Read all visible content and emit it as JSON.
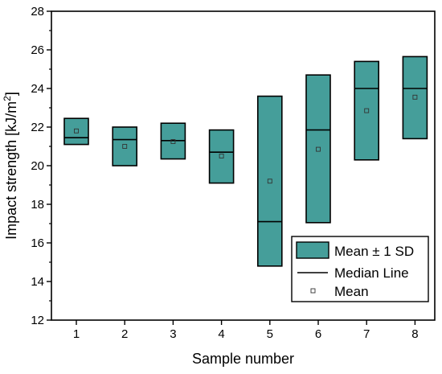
{
  "chart_data": {
    "type": "box",
    "title": "",
    "xlabel": "Sample number",
    "ylabel_main": "Impact strength [kJ/m",
    "ylabel_sup": "2",
    "ylabel_end": "]",
    "categories": [
      "1",
      "2",
      "3",
      "4",
      "5",
      "6",
      "7",
      "8"
    ],
    "boxes": [
      {
        "sample": "1",
        "mean": 21.8,
        "median": 21.45,
        "lower": 21.1,
        "upper": 22.45
      },
      {
        "sample": "2",
        "mean": 21.0,
        "median": 21.35,
        "lower": 20.0,
        "upper": 22.0
      },
      {
        "sample": "3",
        "mean": 21.25,
        "median": 21.3,
        "lower": 20.35,
        "upper": 22.2
      },
      {
        "sample": "4",
        "mean": 20.5,
        "median": 20.7,
        "lower": 19.1,
        "upper": 21.85
      },
      {
        "sample": "5",
        "mean": 19.2,
        "median": 17.1,
        "lower": 14.8,
        "upper": 23.6
      },
      {
        "sample": "6",
        "mean": 20.85,
        "median": 21.85,
        "lower": 17.05,
        "upper": 24.7
      },
      {
        "sample": "7",
        "mean": 22.85,
        "median": 24.0,
        "lower": 20.3,
        "upper": 25.4
      },
      {
        "sample": "8",
        "mean": 23.55,
        "median": 24.0,
        "lower": 21.4,
        "upper": 25.65
      }
    ],
    "ylim": [
      12,
      28
    ],
    "yticks": [
      "12",
      "14",
      "16",
      "18",
      "20",
      "22",
      "24",
      "26",
      "28"
    ],
    "grid": false,
    "legend_position": "bottom-right",
    "legend": {
      "box": "Mean ± 1 SD",
      "median": "Median Line",
      "mean": "Mean"
    },
    "colors": {
      "box_fill": "#459e9a",
      "box_stroke": "#000000",
      "median": "#000000",
      "mean_marker": "#333333"
    }
  }
}
